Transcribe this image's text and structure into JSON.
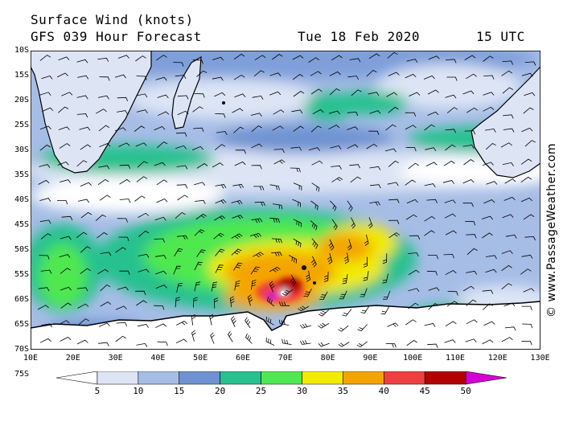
{
  "header": {
    "title": "Surface Wind (knots)",
    "forecast": "GFS 039 Hour Forecast",
    "date": "Tue 18 Feb 2020",
    "time": "15 UTC"
  },
  "copyright": "© www.PassageWeather.com",
  "axes": {
    "lat_labels": [
      "10S",
      "15S",
      "20S",
      "25S",
      "30S",
      "35S",
      "40S",
      "45S",
      "50S",
      "55S",
      "60S",
      "65S",
      "70S",
      "75S"
    ],
    "lon_labels": [
      "10E",
      "20E",
      "30E",
      "40E",
      "50E",
      "60E",
      "70E",
      "80E",
      "90E",
      "100E",
      "110E",
      "120E",
      "130E"
    ]
  },
  "legend": {
    "levels": [
      "5",
      "10",
      "15",
      "20",
      "25",
      "30",
      "35",
      "40",
      "45",
      "50"
    ],
    "colors": [
      "#ffffff",
      "#dde5f5",
      "#a6bde6",
      "#6f93d2",
      "#27c18f",
      "#50e850",
      "#f2ea00",
      "#f4a400",
      "#ee4040",
      "#b40000",
      "#d400d4"
    ]
  }
}
